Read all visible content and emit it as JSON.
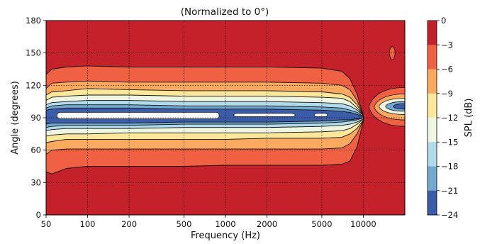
{
  "chart_data": {
    "type": "heatmap",
    "subtitle": "(Normalized to 0°)",
    "xlabel": "Frequency (Hz)",
    "ylabel": "Angle (degrees)",
    "x_scale": "log",
    "xlim": [
      50,
      20000
    ],
    "ylim": [
      0,
      180
    ],
    "x_ticks": [
      {
        "value": 50,
        "label": "50"
      },
      {
        "value": 100,
        "label": "100"
      },
      {
        "value": 200,
        "label": "200"
      },
      {
        "value": 500,
        "label": "500"
      },
      {
        "value": 1000,
        "label": "1000"
      },
      {
        "value": 2000,
        "label": "2000"
      },
      {
        "value": 5000,
        "label": "5000"
      },
      {
        "value": 10000,
        "label": "10000"
      }
    ],
    "y_ticks": [
      {
        "value": 0,
        "label": "0"
      },
      {
        "value": 30,
        "label": "30"
      },
      {
        "value": 60,
        "label": "60"
      },
      {
        "value": 90,
        "label": "90"
      },
      {
        "value": 120,
        "label": "120"
      },
      {
        "value": 150,
        "label": "150"
      },
      {
        "value": 180,
        "label": "180"
      }
    ],
    "grid": true,
    "colorbar": {
      "label": "SPL (dB)",
      "levels": [
        0,
        -3,
        -6,
        -9,
        -12,
        -15,
        -18,
        -21,
        -24
      ],
      "tick_labels": [
        "0",
        "−3",
        "−6",
        "−9",
        "−12",
        "−15",
        "−18",
        "−21",
        "−24"
      ],
      "colors": [
        "#c4212b",
        "#ef6142",
        "#fba95f",
        "#fde79b",
        "#eef5e1",
        "#b1dbea",
        "#74a9cf",
        "#3b5ca8"
      ]
    },
    "contour_boundaries": [
      {
        "level": -3,
        "f": [
          50,
          55,
          70,
          100,
          200,
          500,
          1000,
          2000,
          5000,
          7000,
          8000,
          9000,
          10000
        ],
        "upper": [
          130,
          135,
          137,
          138,
          137,
          137,
          137,
          137,
          136,
          133,
          126,
          112,
          92
        ],
        "lower": [
          40,
          38,
          43,
          45,
          45,
          45,
          46,
          46,
          46,
          47,
          50,
          63,
          87
        ]
      },
      {
        "level": -6,
        "f": [
          50,
          55,
          70,
          100,
          200,
          500,
          1000,
          2000,
          5000,
          7000,
          8000,
          9000,
          10000
        ],
        "upper": [
          117,
          122,
          123,
          124,
          123,
          123,
          123,
          123,
          122,
          120,
          116,
          106,
          92
        ],
        "lower": [
          56,
          60,
          61,
          61,
          61,
          61,
          61,
          61,
          61,
          62,
          66,
          75,
          88
        ]
      },
      {
        "level": -9,
        "f": [
          50,
          55,
          70,
          100,
          200,
          500,
          1000,
          2000,
          5000,
          7000,
          8000,
          9000,
          10000
        ],
        "upper": [
          111,
          114,
          115,
          117,
          116,
          115,
          115,
          115,
          114,
          112,
          109,
          102,
          92
        ],
        "lower": [
          67,
          68,
          70,
          70,
          70,
          70,
          70,
          71,
          71,
          72,
          75,
          80,
          88
        ]
      },
      {
        "level": -12,
        "f": [
          50,
          55,
          70,
          100,
          200,
          500,
          1000,
          2000,
          5000,
          7000,
          8000,
          9000,
          10000
        ],
        "upper": [
          106,
          109,
          110,
          111,
          111,
          110,
          110,
          110,
          109,
          108,
          105,
          99,
          92
        ],
        "lower": [
          73,
          74,
          75,
          75,
          76,
          76,
          76,
          76,
          77,
          78,
          80,
          84,
          89
        ]
      },
      {
        "level": -15,
        "f": [
          50,
          55,
          70,
          100,
          200,
          500,
          1000,
          2000,
          5000,
          7000,
          8000,
          9000,
          10000
        ],
        "upper": [
          102,
          104,
          105,
          106,
          106,
          105,
          105,
          105,
          104,
          103,
          101,
          97,
          92
        ],
        "lower": [
          78,
          79,
          80,
          80,
          80,
          81,
          81,
          81,
          82,
          83,
          84,
          86,
          89
        ]
      },
      {
        "level": -18,
        "f": [
          50,
          55,
          70,
          100,
          200,
          500,
          1000,
          2000,
          5000,
          7000,
          8000,
          9000,
          10000
        ],
        "upper": [
          99,
          101,
          102,
          102,
          102,
          101,
          101,
          101,
          100,
          99,
          97,
          95,
          91
        ],
        "lower": [
          81,
          82,
          83,
          83,
          83,
          84,
          84,
          84,
          85,
          86,
          87,
          88,
          90
        ]
      },
      {
        "level": -21,
        "f": [
          50,
          55,
          70,
          100,
          200,
          500,
          1000,
          2000,
          5000,
          7000,
          8000,
          9000,
          10000
        ],
        "upper": [
          97,
          98,
          99,
          99,
          99,
          98,
          98,
          98,
          97,
          96,
          95,
          93,
          91
        ],
        "lower": [
          84,
          85,
          85,
          85,
          85,
          86,
          86,
          86,
          87,
          88,
          88,
          89,
          90
        ]
      }
    ],
    "deep_nulls": [
      {
        "f_start": 60,
        "f_end": 900,
        "angle_low": 89,
        "angle_high": 95
      },
      {
        "f_start": 1150,
        "f_end": 3200,
        "angle_low": 91,
        "angle_high": 94
      },
      {
        "f_start": 4400,
        "f_end": 5500,
        "angle_low": 91,
        "angle_high": 94
      }
    ],
    "hf_lobes": [
      {
        "f_start": 11000,
        "f_end": 20000,
        "angle_low": 82,
        "angle_high": 118,
        "level": -3
      },
      {
        "f_start": 12000,
        "f_end": 20000,
        "angle_low": 88,
        "angle_high": 112,
        "level": -6
      },
      {
        "f_start": 13000,
        "f_end": 20000,
        "angle_low": 93,
        "angle_high": 108,
        "level": -12
      },
      {
        "f_start": 14500,
        "f_end": 20000,
        "angle_low": 96,
        "angle_high": 105,
        "level": -18
      },
      {
        "f_start": 16500,
        "f_end": 20000,
        "angle_low": 98,
        "angle_high": 103,
        "level": -24
      }
    ],
    "hf_spots": [
      {
        "f": 16200,
        "angle": 150,
        "level": -3
      }
    ]
  }
}
